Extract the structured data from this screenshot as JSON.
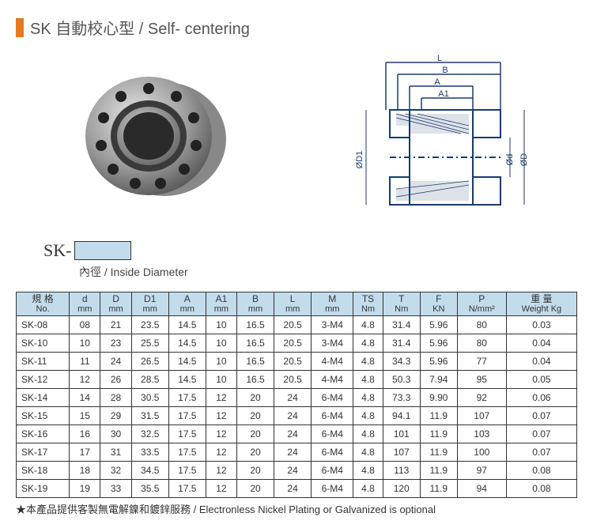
{
  "title": "SK 自動校心型 / Self- centering",
  "sk_prefix": "SK-",
  "sk_sub": "內徑 / Inside Diameter",
  "diagram_labels": [
    "L",
    "B",
    "A",
    "A1",
    "ØD1",
    "Ød",
    "ØD"
  ],
  "columns": [
    {
      "top": "規 格",
      "bottom": "No."
    },
    {
      "top": "d",
      "bottom": "mm"
    },
    {
      "top": "D",
      "bottom": "mm"
    },
    {
      "top": "D1",
      "bottom": "mm"
    },
    {
      "top": "A",
      "bottom": "mm"
    },
    {
      "top": "A1",
      "bottom": "mm"
    },
    {
      "top": "B",
      "bottom": "mm"
    },
    {
      "top": "L",
      "bottom": "mm"
    },
    {
      "top": "M",
      "bottom": "mm"
    },
    {
      "top": "TS",
      "bottom": "Nm"
    },
    {
      "top": "T",
      "bottom": "Nm"
    },
    {
      "top": "F",
      "bottom": "KN"
    },
    {
      "top": "P",
      "bottom": "N/mm²"
    },
    {
      "top": "重 量",
      "bottom": "Weight Kg"
    }
  ],
  "rows": [
    [
      "SK-08",
      "08",
      "21",
      "23.5",
      "14.5",
      "10",
      "16.5",
      "20.5",
      "3-M4",
      "4.8",
      "31.4",
      "5.96",
      "80",
      "0.03"
    ],
    [
      "SK-10",
      "10",
      "23",
      "25.5",
      "14.5",
      "10",
      "16.5",
      "20.5",
      "3-M4",
      "4.8",
      "31.4",
      "5.96",
      "80",
      "0.04"
    ],
    [
      "SK-11",
      "11",
      "24",
      "26.5",
      "14.5",
      "10",
      "16.5",
      "20.5",
      "4-M4",
      "4.8",
      "34.3",
      "5.96",
      "77",
      "0.04"
    ],
    [
      "SK-12",
      "12",
      "26",
      "28.5",
      "14.5",
      "10",
      "16.5",
      "20.5",
      "4-M4",
      "4.8",
      "50.3",
      "7.94",
      "95",
      "0.05"
    ],
    [
      "SK-14",
      "14",
      "28",
      "30.5",
      "17.5",
      "12",
      "20",
      "24",
      "6-M4",
      "4.8",
      "73.3",
      "9.90",
      "92",
      "0.06"
    ],
    [
      "SK-15",
      "15",
      "29",
      "31.5",
      "17.5",
      "12",
      "20",
      "24",
      "6-M4",
      "4.8",
      "94.1",
      "11.9",
      "107",
      "0.07"
    ],
    [
      "SK-16",
      "16",
      "30",
      "32.5",
      "17.5",
      "12",
      "20",
      "24",
      "6-M4",
      "4.8",
      "101",
      "11.9",
      "103",
      "0.07"
    ],
    [
      "SK-17",
      "17",
      "31",
      "33.5",
      "17.5",
      "12",
      "20",
      "24",
      "6-M4",
      "4.8",
      "107",
      "11.9",
      "100",
      "0.07"
    ],
    [
      "SK-18",
      "18",
      "32",
      "34.5",
      "17.5",
      "12",
      "20",
      "24",
      "6-M4",
      "4.8",
      "113",
      "11.9",
      "97",
      "0.08"
    ],
    [
      "SK-19",
      "19",
      "33",
      "35.5",
      "17.5",
      "12",
      "20",
      "24",
      "6-M4",
      "4.8",
      "120",
      "11.9",
      "94",
      "0.08"
    ]
  ],
  "footnote": "★本產品提供客製無電解鎳和鍍鋅服務 / Electronless Nickel Plating or Galvanized is optional",
  "colors": {
    "accent": "#e57a1f",
    "header_bg": "#c3dcec",
    "border": "#333333"
  }
}
